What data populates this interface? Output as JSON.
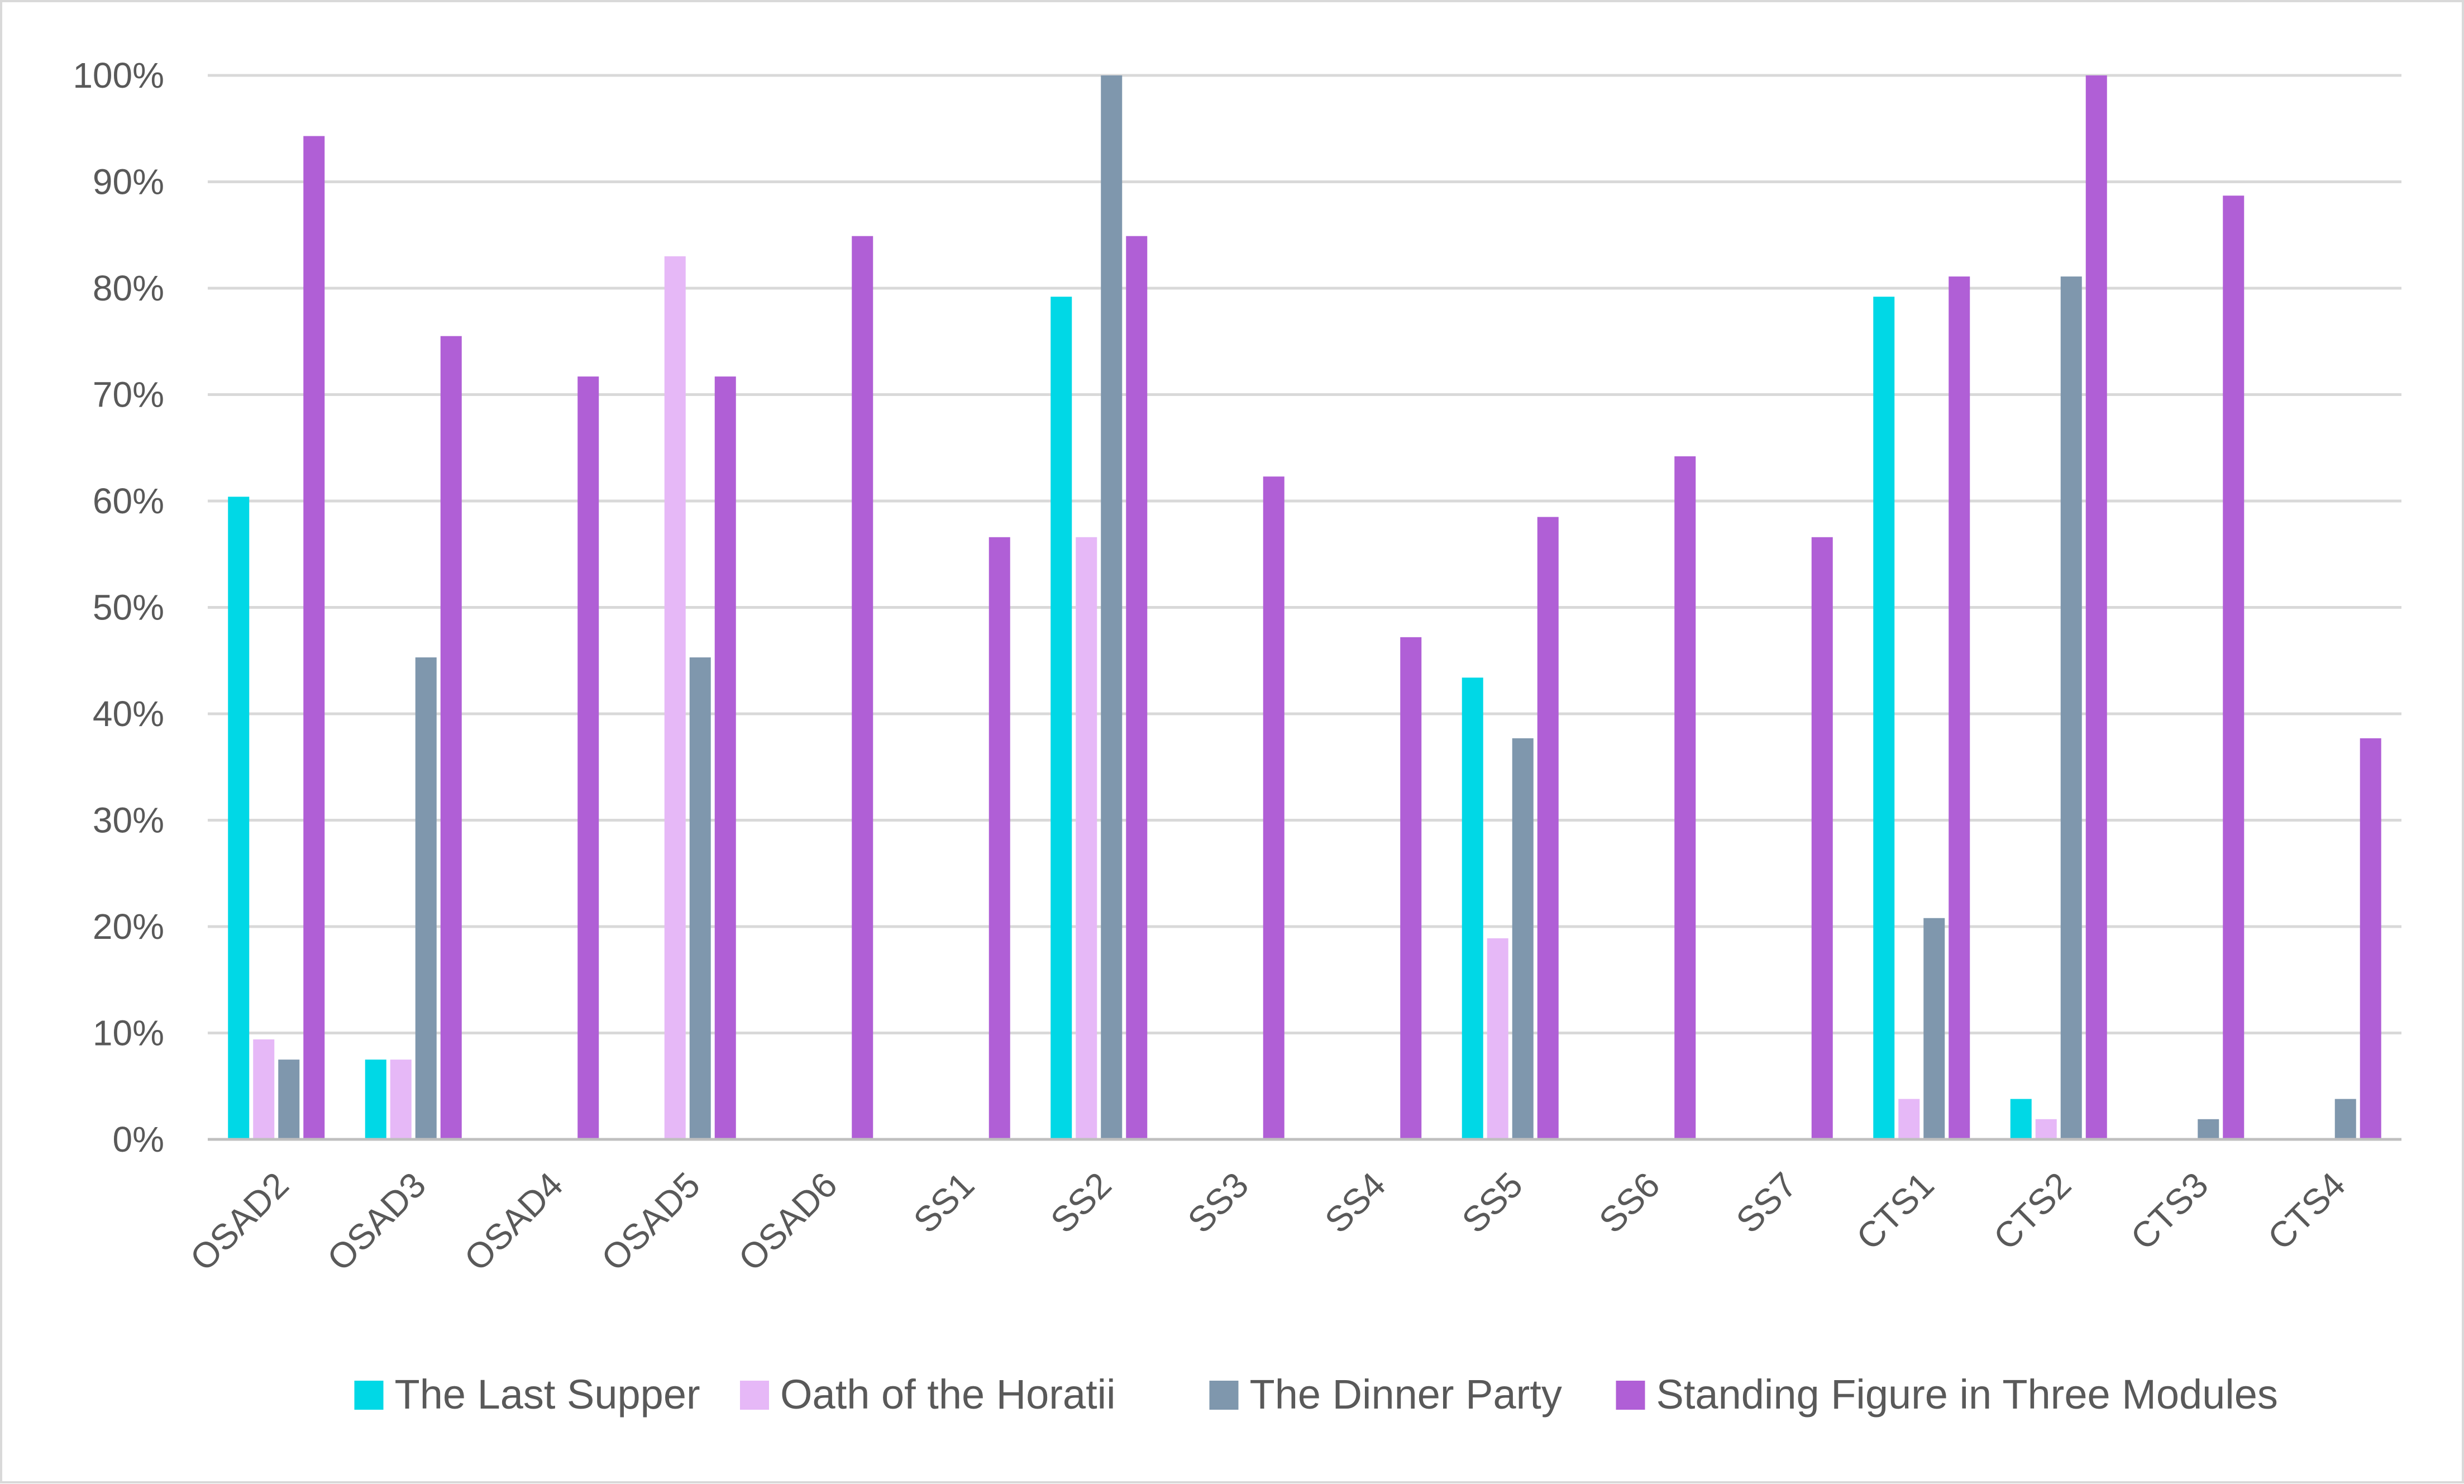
{
  "chart_data": {
    "type": "bar",
    "title": "",
    "xlabel": "",
    "ylabel": "",
    "ylim": [
      0,
      100
    ],
    "y_ticks": [
      "0%",
      "10%",
      "20%",
      "30%",
      "40%",
      "50%",
      "60%",
      "70%",
      "80%",
      "90%",
      "100%"
    ],
    "y_unit": "%",
    "grid": true,
    "legend_position": "bottom",
    "categories": [
      "OSAD2",
      "OSAD3",
      "OSAD4",
      "OSAD5",
      "OSAD6",
      "SS1",
      "SS2",
      "SS3",
      "SS4",
      "SS5",
      "SS6",
      "SS7",
      "CTS1",
      "CTS2",
      "CTS3",
      "CTS4"
    ],
    "series": [
      {
        "name": "The Last Supper",
        "color": "#00d8e6",
        "values": [
          60.4,
          7.5,
          0,
          0,
          0,
          0,
          79.2,
          0,
          0,
          43.4,
          0,
          0,
          79.2,
          3.8,
          0,
          0
        ]
      },
      {
        "name": "Oath of the Horatii",
        "color": "#e6b8f7",
        "values": [
          9.4,
          7.5,
          0,
          83.0,
          0,
          0,
          56.6,
          0,
          0,
          18.9,
          0,
          0,
          3.8,
          1.9,
          0,
          0
        ]
      },
      {
        "name": "The Dinner Party",
        "color": "#7f97ad",
        "values": [
          7.5,
          45.3,
          0,
          45.3,
          0,
          0,
          100,
          0,
          0,
          37.7,
          0,
          0,
          20.8,
          81.1,
          1.9,
          3.8
        ]
      },
      {
        "name": "Standing Figure in Three Modules",
        "color": "#b05fd6",
        "values": [
          94.3,
          75.5,
          71.7,
          71.7,
          84.9,
          56.6,
          84.9,
          62.3,
          47.2,
          58.5,
          64.2,
          56.6,
          81.1,
          100,
          88.7,
          37.7
        ]
      }
    ]
  }
}
